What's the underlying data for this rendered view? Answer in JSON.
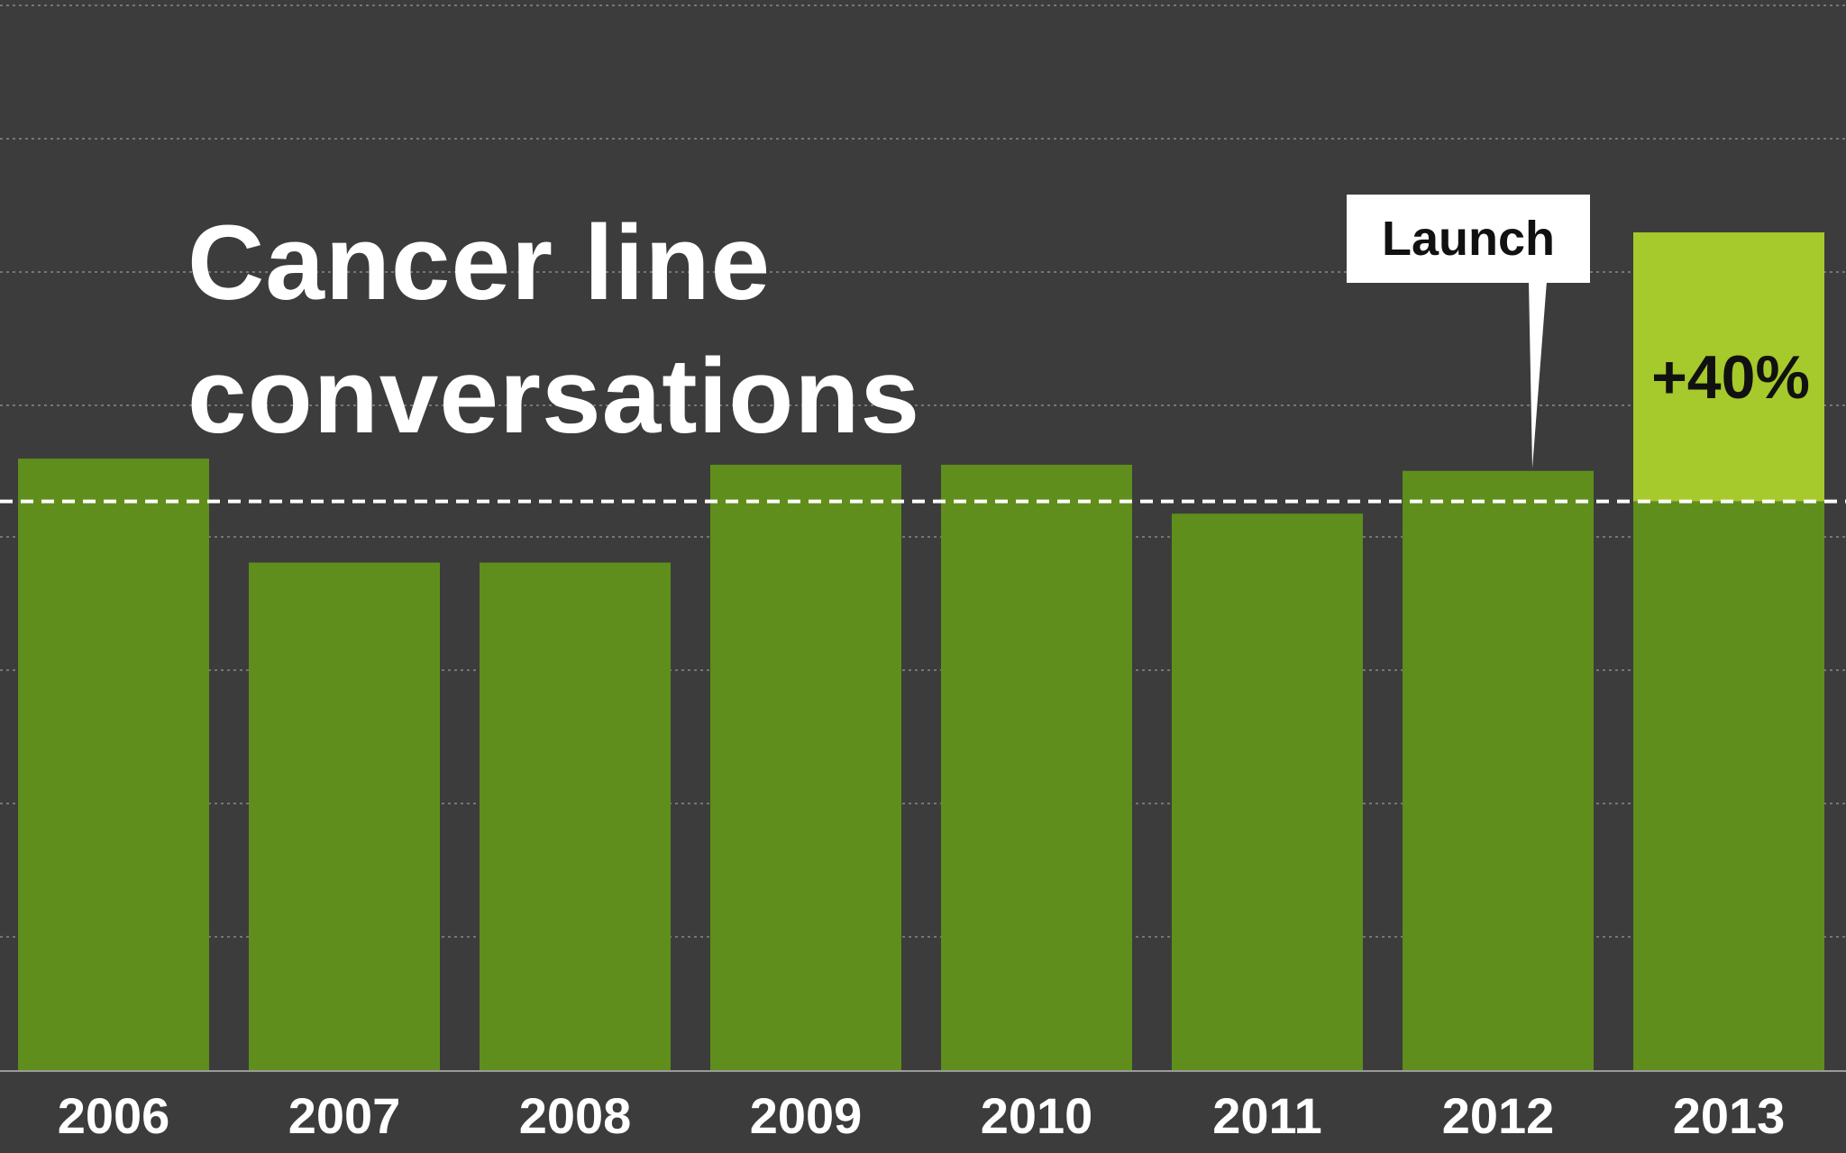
{
  "chart_data": {
    "type": "bar",
    "title_lines": [
      "Cancer line",
      "conversations"
    ],
    "categories": [
      "2006",
      "2007",
      "2008",
      "2009",
      "2010",
      "2011",
      "2012",
      "2013"
    ],
    "values": [
      100,
      83,
      83,
      99,
      99,
      91,
      98,
      137
    ],
    "reference_line": {
      "value": 93,
      "style": "dashed",
      "color": "#ffffff"
    },
    "highlight": {
      "category": "2013",
      "base_value": 93,
      "label": "+40%",
      "color": "#a6c92b"
    },
    "annotation": {
      "label": "Launch",
      "category": "2012"
    },
    "ylim": [
      0,
      175
    ],
    "grid": true,
    "xlabel": "",
    "ylabel": ""
  },
  "colors": {
    "background": "#3c3c3c",
    "bar": "#5f8e1c",
    "highlight": "#a6c92b",
    "grid": "#8a8a8a",
    "text": "#ffffff"
  }
}
